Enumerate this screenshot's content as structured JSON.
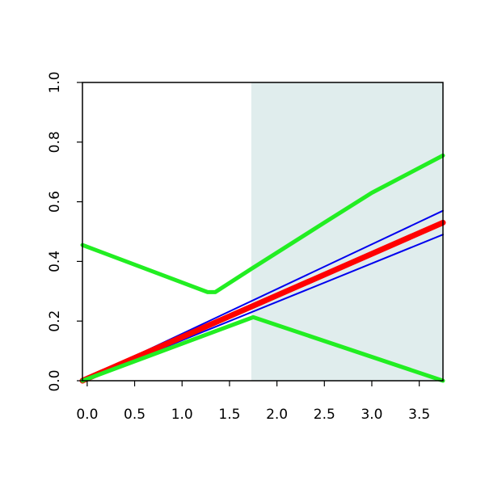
{
  "chart_data": {
    "type": "line",
    "title": "",
    "xlabel": "",
    "ylabel": "",
    "xlim": [
      -0.05,
      3.75
    ],
    "ylim": [
      0.0,
      1.0
    ],
    "x_ticks": [
      0.0,
      0.5,
      1.0,
      1.5,
      2.0,
      2.5,
      3.0,
      3.5
    ],
    "x_tick_labels": [
      "0.0",
      "0.5",
      "1.0",
      "1.5",
      "2.0",
      "2.5",
      "3.0",
      "3.5"
    ],
    "y_ticks": [
      0.0,
      0.2,
      0.4,
      0.6,
      0.8,
      1.0
    ],
    "y_tick_labels": [
      "0.0",
      "0.2",
      "0.4",
      "0.6",
      "0.8",
      "1.0"
    ],
    "grid": false,
    "shaded_region": {
      "x_start": 1.73,
      "x_end": 3.75,
      "color": "#e0eded"
    },
    "series": [
      {
        "color": "#0000ee",
        "x": [
          -0.05,
          3.75
        ],
        "y": [
          0.0,
          0.57
        ]
      },
      {
        "color": "#0000ee",
        "x": [
          -0.05,
          3.75
        ],
        "y": [
          0.0,
          0.49
        ]
      },
      {
        "color": "#ff0000",
        "x": [
          -0.05,
          3.75
        ],
        "y": [
          0.0,
          0.53
        ]
      },
      {
        "color": "#22ee22",
        "x": [
          -0.05,
          1.27,
          1.35,
          1.73,
          2.5,
          3.0,
          3.75
        ],
        "y": [
          0.455,
          0.297,
          0.297,
          0.375,
          0.53,
          0.63,
          0.755
        ]
      },
      {
        "color": "#22ee22",
        "x": [
          -0.05,
          1.75,
          3.75
        ],
        "y": [
          0.0,
          0.213,
          0.0
        ]
      }
    ]
  }
}
